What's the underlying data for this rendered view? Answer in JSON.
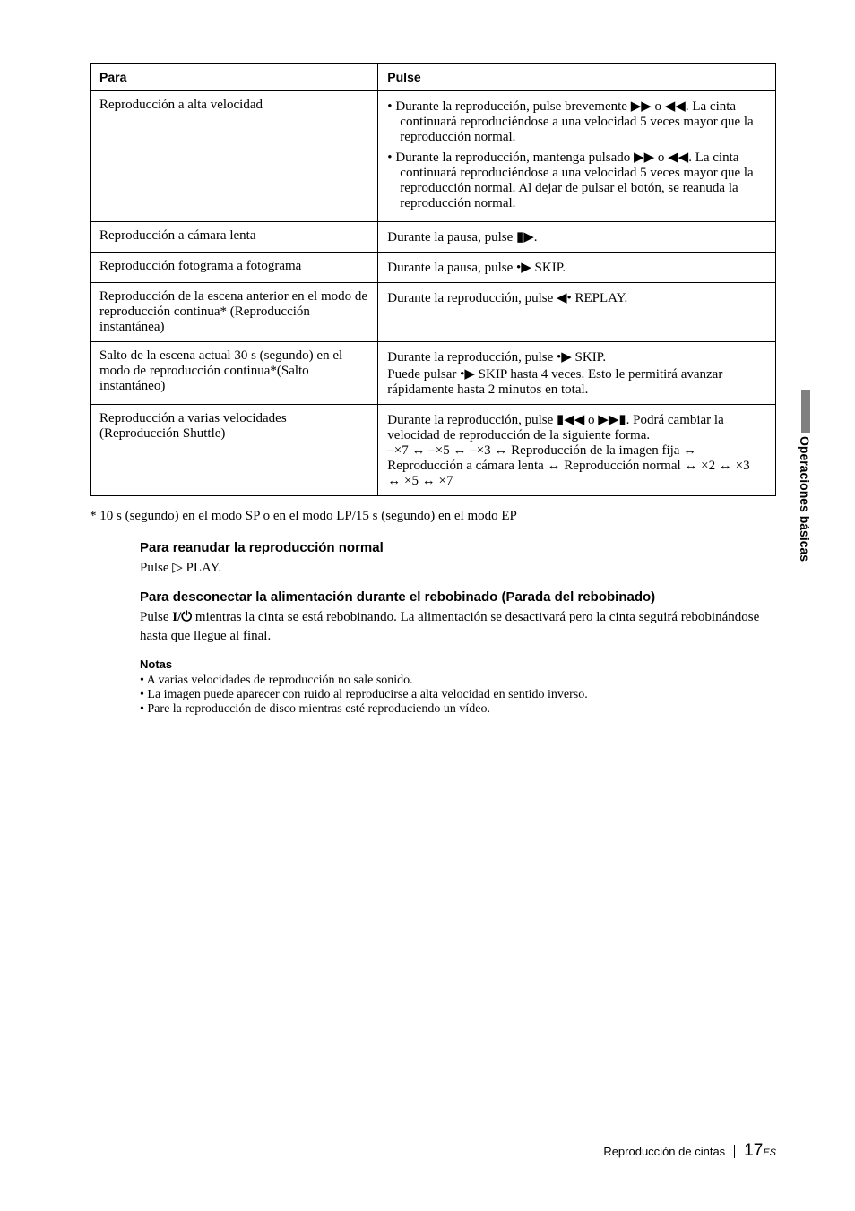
{
  "table": {
    "headers": {
      "para": "Para",
      "pulse": "Pulse"
    },
    "rows": [
      {
        "para": "Reproducción a alta velocidad",
        "pulse_bullets": [
          "Durante la reproducción, pulse brevemente ▶▶ o ◀◀. La cinta continuará reproduciéndose a una velocidad 5 veces mayor que la reproducción normal.",
          "Durante la reproducción, mantenga pulsado ▶▶ o ◀◀. La cinta continuará reproduciéndose a una velocidad 5 veces mayor que la reproducción normal. Al dejar de pulsar el botón, se reanuda la reproducción normal."
        ]
      },
      {
        "para": "Reproducción a cámara lenta",
        "pulse_text": "Durante la pausa, pulse ▮▶."
      },
      {
        "para": "Reproducción fotograma a fotograma",
        "pulse_text": "Durante la pausa, pulse •▶ SKIP."
      },
      {
        "para": "Reproducción de la escena anterior en el modo de reproducción continua* (Reproducción instantánea)",
        "pulse_text": "Durante la reproducción, pulse ◀• REPLAY."
      },
      {
        "para": "Salto de la escena actual 30 s (segundo) en el modo de reproducción continua*(Salto instantáneo)",
        "pulse_lines": [
          "Durante la reproducción, pulse •▶ SKIP.",
          "Puede pulsar •▶ SKIP hasta 4 veces. Esto le permitirá avanzar rápidamente hasta 2 minutos en total."
        ]
      },
      {
        "para": "Reproducción a varias velocidades (Reproducción Shuttle)",
        "pulse_lines": [
          "Durante la reproducción, pulse ▮◀◀ o ▶▶▮. Podrá cambiar la velocidad de reproducción de la siguiente forma.",
          "–×7 ↔ –×5 ↔ –×3 ↔ Reproducción de la imagen fija ↔ Reproducción a cámara lenta ↔ Reproducción normal ↔ ×2 ↔ ×3 ↔ ×5 ↔ ×7"
        ]
      }
    ]
  },
  "footnote": "* 10 s (segundo) en el modo SP o en el modo LP/15 s (segundo) en el modo EP",
  "sections": {
    "resume": {
      "heading": "Para reanudar la reproducción normal",
      "body": "Pulse ▷ PLAY."
    },
    "power": {
      "heading": "Para desconectar la alimentación durante el rebobinado (Parada del rebobinado)",
      "body_prefix": "Pulse ",
      "body_sym": "⏻",
      "body_prefix2": "I",
      "body_suffix": " mientras la cinta se está rebobinando. La alimentación se desactivará pero la cinta seguirá rebobinándose hasta que llegue al final."
    },
    "notas": {
      "label": "Notas",
      "items": [
        "A varias velocidades de reproducción no sale sonido.",
        "La imagen puede aparecer con ruido al reproducirse a alta velocidad en sentido inverso.",
        "Pare la reproducción de disco mientras esté reproduciendo un vídeo."
      ]
    }
  },
  "side_tab": "Operaciones básicas",
  "footer": {
    "title": "Reproducción de cintas",
    "page": "17",
    "suffix": "ES"
  }
}
